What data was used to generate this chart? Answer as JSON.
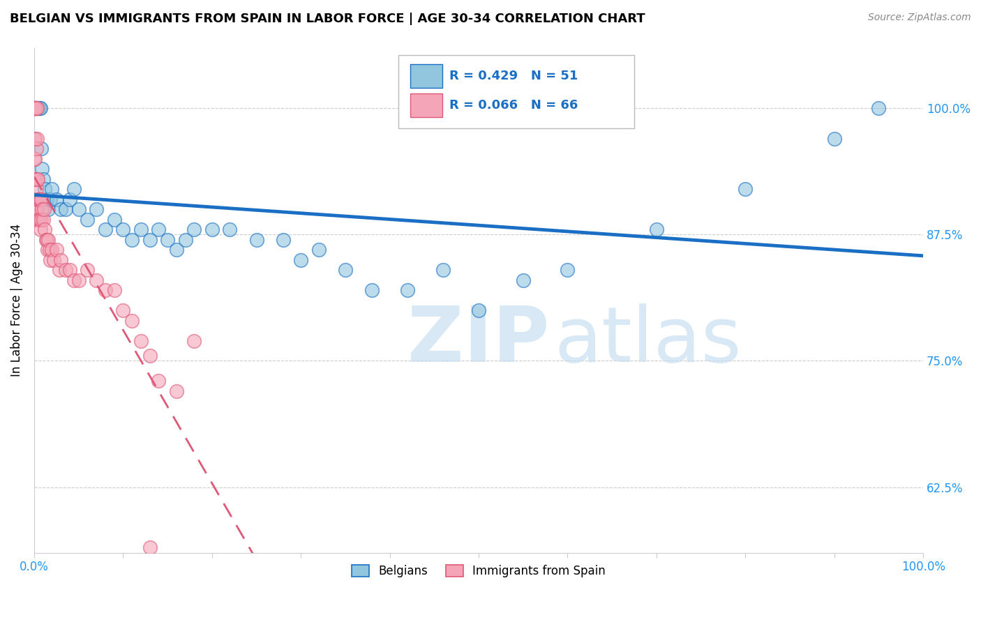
{
  "title": "BELGIAN VS IMMIGRANTS FROM SPAIN IN LABOR FORCE | AGE 30-34 CORRELATION CHART",
  "source": "Source: ZipAtlas.com",
  "ylabel": "In Labor Force | Age 30-34",
  "legend_label1": "Belgians",
  "legend_label2": "Immigrants from Spain",
  "r1": 0.429,
  "n1": 51,
  "r2": 0.066,
  "n2": 66,
  "color_blue": "#92c5de",
  "color_pink": "#f4a6b8",
  "line_blue": "#1a6fc4",
  "line_pink": "#e05878",
  "xlim": [
    0.0,
    1.0
  ],
  "ylim": [
    0.56,
    1.06
  ],
  "yticks": [
    0.625,
    0.75,
    0.875,
    1.0
  ],
  "ytick_labels": [
    "62.5%",
    "75.0%",
    "87.5%",
    "100.0%"
  ],
  "blue_x": [
    0.001,
    0.002,
    0.003,
    0.004,
    0.005,
    0.006,
    0.007,
    0.008,
    0.009,
    0.01,
    0.012,
    0.014,
    0.016,
    0.018,
    0.02,
    0.025,
    0.03,
    0.035,
    0.04,
    0.045,
    0.05,
    0.06,
    0.07,
    0.08,
    0.09,
    0.1,
    0.11,
    0.12,
    0.13,
    0.14,
    0.15,
    0.16,
    0.17,
    0.18,
    0.2,
    0.22,
    0.25,
    0.28,
    0.3,
    0.32,
    0.35,
    0.38,
    0.42,
    0.46,
    0.5,
    0.55,
    0.6,
    0.7,
    0.8,
    0.9,
    0.95
  ],
  "blue_y": [
    1.0,
    1.0,
    1.0,
    1.0,
    1.0,
    1.0,
    1.0,
    0.96,
    0.94,
    0.93,
    0.92,
    0.91,
    0.9,
    0.91,
    0.92,
    0.91,
    0.9,
    0.9,
    0.91,
    0.92,
    0.9,
    0.89,
    0.9,
    0.88,
    0.89,
    0.88,
    0.87,
    0.88,
    0.87,
    0.88,
    0.87,
    0.86,
    0.87,
    0.88,
    0.88,
    0.88,
    0.87,
    0.87,
    0.85,
    0.86,
    0.84,
    0.82,
    0.82,
    0.84,
    0.8,
    0.83,
    0.84,
    0.88,
    0.92,
    0.97,
    1.0
  ],
  "pink_x": [
    0.0,
    0.0,
    0.0,
    0.0,
    0.0,
    0.0,
    0.0,
    0.0,
    0.0,
    0.0,
    0.001,
    0.001,
    0.001,
    0.001,
    0.001,
    0.001,
    0.001,
    0.002,
    0.002,
    0.002,
    0.003,
    0.003,
    0.003,
    0.003,
    0.004,
    0.004,
    0.004,
    0.005,
    0.005,
    0.006,
    0.006,
    0.007,
    0.007,
    0.008,
    0.008,
    0.009,
    0.01,
    0.011,
    0.012,
    0.013,
    0.014,
    0.015,
    0.016,
    0.017,
    0.018,
    0.02,
    0.022,
    0.025,
    0.028,
    0.03,
    0.035,
    0.04,
    0.045,
    0.05,
    0.06,
    0.07,
    0.08,
    0.09,
    0.1,
    0.11,
    0.12,
    0.14,
    0.16,
    0.18,
    0.13,
    0.13
  ],
  "pink_y": [
    1.0,
    1.0,
    1.0,
    1.0,
    1.0,
    1.0,
    0.97,
    0.95,
    0.93,
    0.91,
    1.0,
    1.0,
    1.0,
    0.97,
    0.95,
    0.93,
    0.9,
    1.0,
    0.96,
    0.92,
    1.0,
    0.97,
    0.93,
    0.9,
    0.93,
    0.91,
    0.89,
    0.91,
    0.89,
    0.91,
    0.89,
    0.91,
    0.88,
    0.91,
    0.89,
    0.9,
    0.89,
    0.9,
    0.88,
    0.87,
    0.87,
    0.86,
    0.87,
    0.86,
    0.85,
    0.86,
    0.85,
    0.86,
    0.84,
    0.85,
    0.84,
    0.84,
    0.83,
    0.83,
    0.84,
    0.83,
    0.82,
    0.82,
    0.8,
    0.79,
    0.77,
    0.73,
    0.72,
    0.77,
    0.755,
    0.565
  ]
}
